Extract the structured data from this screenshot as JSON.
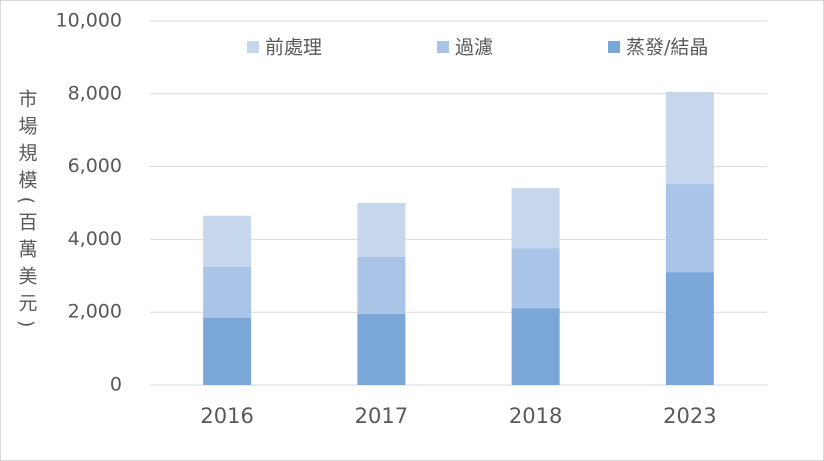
{
  "chart_data": {
    "type": "stacked_bar",
    "y_label": "市場規模(百萬美元)",
    "categories": [
      "2016",
      "2017",
      "2018",
      "2023"
    ],
    "series": [
      {
        "name": "前處理",
        "color": "#c6d6ed",
        "values": [
          1400,
          1480,
          1650,
          2530
        ]
      },
      {
        "name": "過濾",
        "color": "#a9c4e6",
        "values": [
          1400,
          1570,
          1650,
          2420
        ]
      },
      {
        "name": "蒸發/結晶",
        "color": "#7aa6d8",
        "values": [
          1850,
          1950,
          2110,
          3100
        ]
      }
    ],
    "ylim": [
      0,
      10000
    ],
    "yticks": [
      0,
      {
        "value": 2000,
        "label": "2,000"
      },
      {
        "value": 4000,
        "label": "4,000"
      },
      {
        "value": 6000,
        "label": "6,000"
      },
      {
        "value": 8000,
        "label": "8,000"
      },
      {
        "value": 10000,
        "label": "10,000"
      }
    ],
    "grid": true,
    "legend": "top"
  }
}
